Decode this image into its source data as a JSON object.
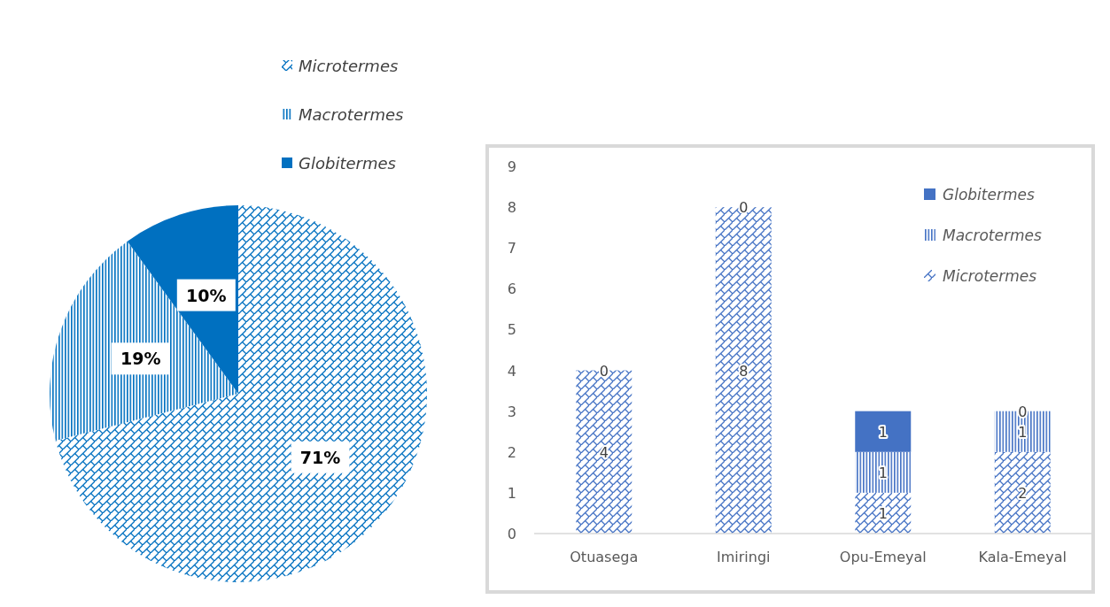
{
  "chart_data": [
    {
      "type": "pie",
      "categories": [
        "Microtermes",
        "Macrotermes",
        "Globitermes"
      ],
      "values": [
        71,
        19,
        10
      ],
      "colors": [
        "#0070c0",
        "#0070c0",
        "#0070c0"
      ],
      "value_labels": [
        "71%",
        "19%",
        "10%"
      ],
      "legend": "top right"
    },
    {
      "type": "bar",
      "stacked": true,
      "categories": [
        "Otuasega",
        "Imiringi",
        "Opu-Emeyal",
        "Kala-Emeyal"
      ],
      "series": [
        {
          "name": "Microtermes",
          "color": "#4472c4",
          "values": [
            4,
            8,
            1,
            2
          ],
          "value_labels": [
            "4",
            "8",
            "1",
            "2"
          ]
        },
        {
          "name": "Macrotermes",
          "color": "#4472c4",
          "values": [
            0,
            0,
            1,
            1
          ],
          "value_labels": [
            "0",
            "0",
            "1",
            "1"
          ]
        },
        {
          "name": "Globitermes",
          "color": "#4472c4",
          "values": [
            0,
            0,
            1,
            0
          ],
          "value_labels": [
            null,
            null,
            "1",
            "0"
          ]
        }
      ],
      "ylim": [
        0,
        9
      ],
      "yticks": [
        0,
        1,
        2,
        3,
        4,
        5,
        6,
        7,
        8,
        9
      ],
      "legend": "top right"
    }
  ]
}
